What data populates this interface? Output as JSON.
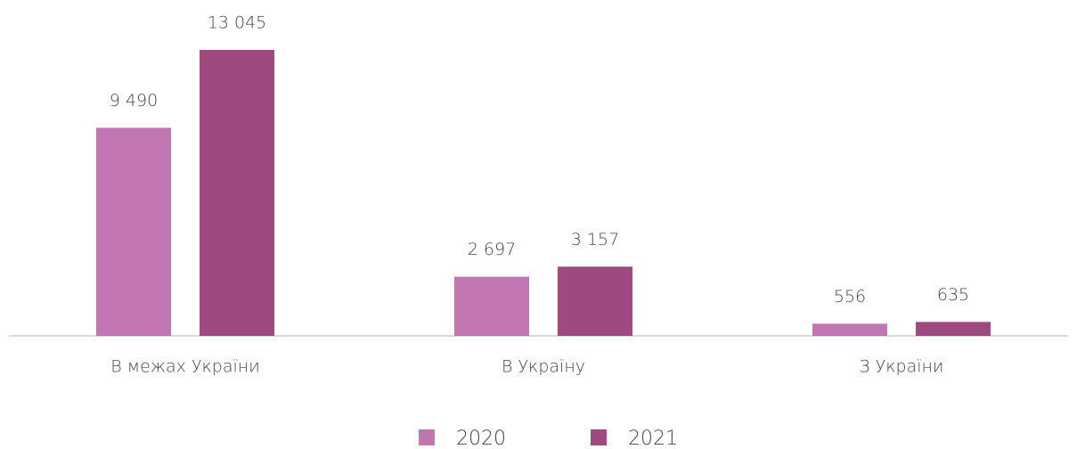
{
  "chart_data": {
    "type": "bar",
    "categories": [
      "В межах України",
      "В Україну",
      "З України"
    ],
    "series": [
      {
        "name": "2020",
        "color": "#c176b1",
        "values": [
          9490,
          2697,
          556
        ],
        "value_labels": [
          "9 490",
          "2 697",
          "556"
        ]
      },
      {
        "name": "2021",
        "color": "#9e4a80",
        "values": [
          13045,
          3157,
          635
        ],
        "value_labels": [
          "13 045",
          "3 157",
          "635"
        ]
      }
    ]
  }
}
